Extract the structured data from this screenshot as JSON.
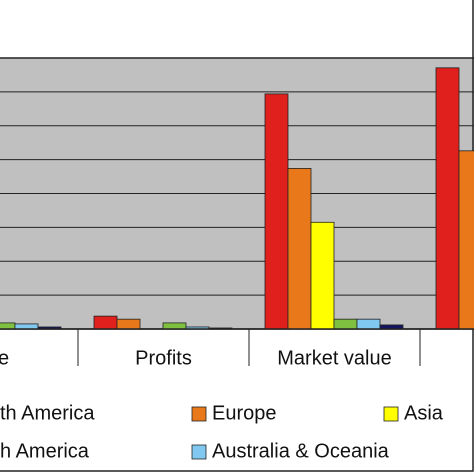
{
  "chart_data": {
    "type": "bar",
    "categories": [
      "nue",
      "Profits",
      "Market value",
      null
    ],
    "series": [
      {
        "name": "th America",
        "color": "#e0201c",
        "values": [
          null,
          0.38,
          6.94,
          7.71
        ]
      },
      {
        "name": "Europe",
        "color": "#e8781a",
        "values": [
          null,
          0.29,
          4.74,
          5.26
        ]
      },
      {
        "name": "Asia",
        "color": "#ffff00",
        "values": [
          null,
          0,
          3.15,
          null
        ]
      },
      {
        "name": "h America",
        "color": "#80c040",
        "values": [
          0.18,
          0.18,
          0.29,
          null
        ]
      },
      {
        "name": "Australia & Oceania",
        "color": "#80c8f0",
        "values": [
          0.15,
          0.06,
          0.29,
          null
        ]
      },
      {
        "name": null,
        "color": "#141460",
        "values": [
          0.06,
          0.03,
          0.12,
          null
        ]
      }
    ],
    "ylim": [
      0,
      8
    ],
    "yticks": [
      0,
      1,
      2,
      3,
      4,
      5,
      6,
      7,
      8
    ],
    "grid": true
  }
}
